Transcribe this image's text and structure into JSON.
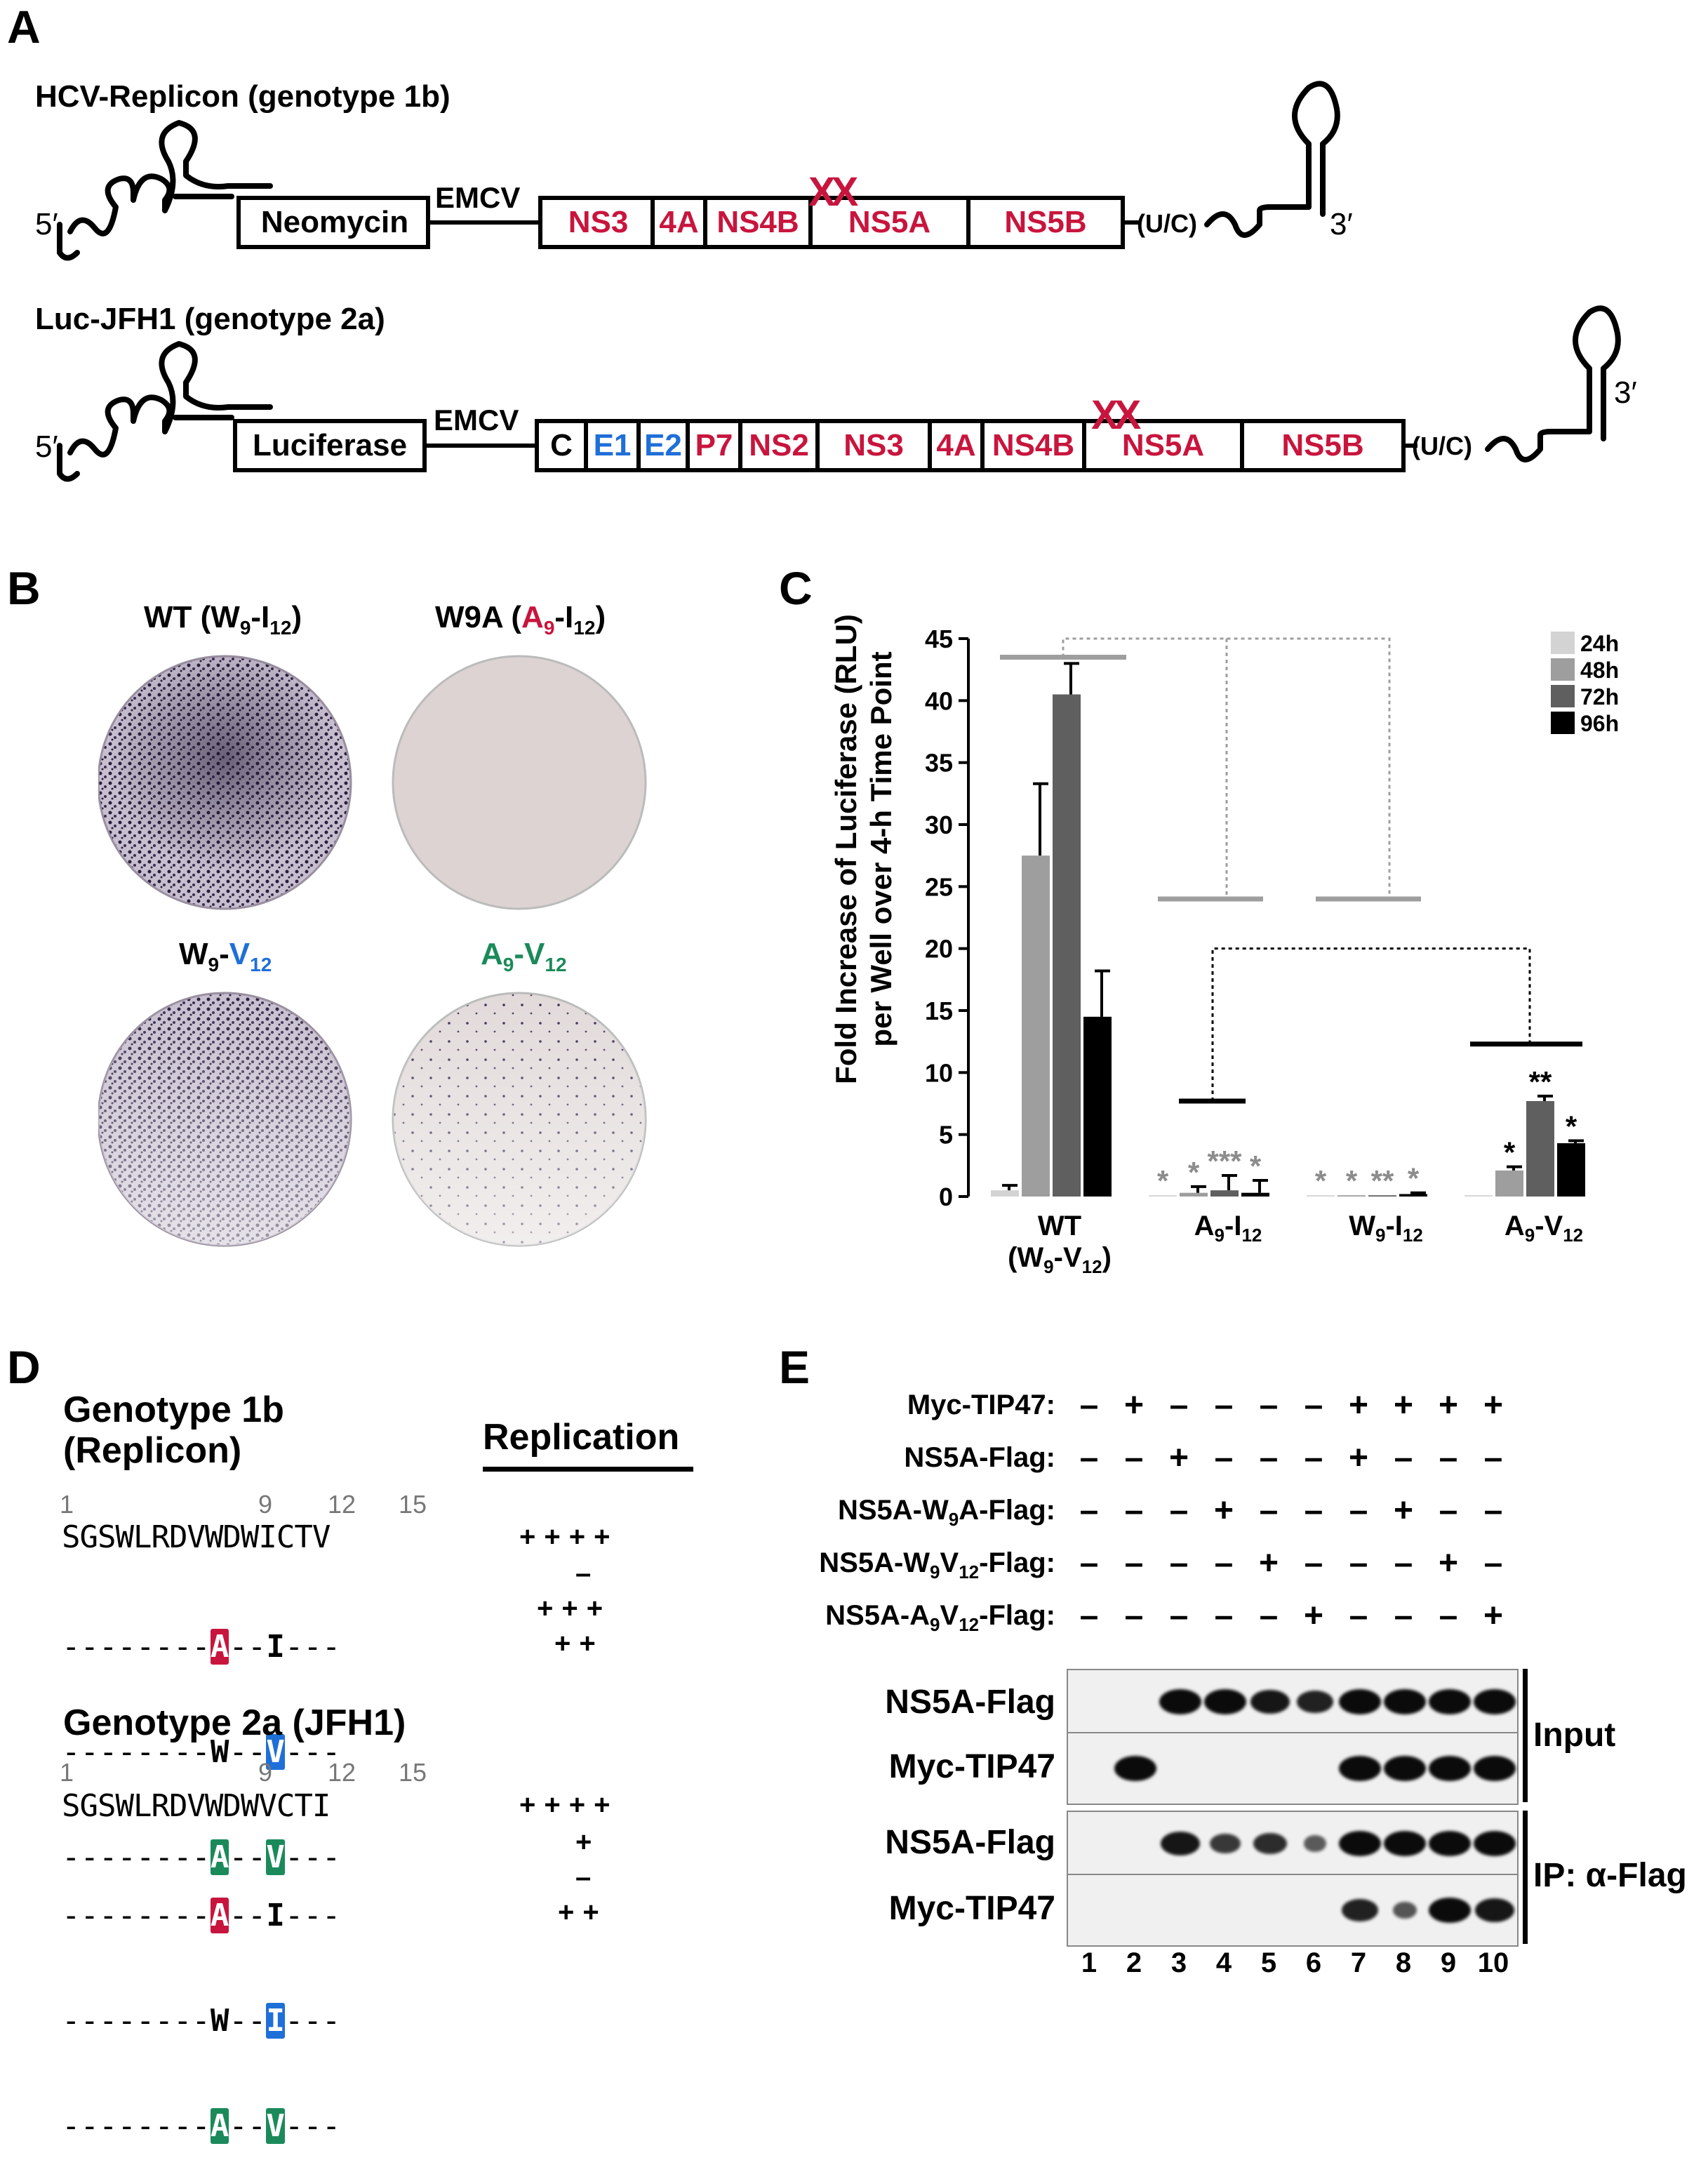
{
  "panels": {
    "a": "A",
    "b": "B",
    "c": "C",
    "d": "D",
    "e": "E"
  },
  "panel_a": {
    "replicon_title": "HCV-Replicon (genotype 1b)",
    "replicon_boxes": [
      "Neomycin",
      "NS3",
      "4A",
      "NS4B",
      "NS5A",
      "NS5B"
    ],
    "jfh1_title": "Luc-JFH1 (genotype 2a)",
    "jfh1_boxes": [
      "Luciferase",
      "C",
      "E1",
      "E2",
      "P7",
      "NS2",
      "NS3",
      "4A",
      "NS4B",
      "NS5A",
      "NS5B"
    ],
    "emcv": "EMCV",
    "five_prime": "5′",
    "three_prime": "3′",
    "uc": "(U/C)",
    "mutation_mark": "XX",
    "colors": {
      "red": "#c8153d",
      "blue": "#1f6fd8"
    }
  },
  "panel_b": {
    "labels": [
      {
        "pre": "WT (W",
        "s1": "9",
        "mid": "-I",
        "s2": "12",
        "post": ")"
      },
      {
        "pre": "W9A (",
        "a": "A",
        "s1": "9",
        "mid": "-I",
        "s2": "12",
        "post": ")"
      },
      {
        "w": "W",
        "s1": "9",
        "dash": "-",
        "v": "V",
        "s2": "12"
      },
      {
        "a": "A",
        "s1": "9",
        "dash": "-",
        "v": "V",
        "s2": "12"
      }
    ]
  },
  "chart_data": {
    "type": "bar",
    "ylabel_line1": "Fold Increase of Luciferase (RLU)",
    "ylabel_line2": "per Well over 4-h Time Point",
    "ylim": [
      0,
      45
    ],
    "yticks": [
      0,
      5,
      10,
      15,
      20,
      25,
      30,
      35,
      40,
      45
    ],
    "categories": [
      "WT (W9-V12)",
      "A9-I12",
      "W9-I12",
      "A9-V12"
    ],
    "category_labels": [
      {
        "l1": "WT",
        "l2": "(W9-V12)"
      },
      {
        "l1": "A9-I12"
      },
      {
        "l1": "W9-I12"
      },
      {
        "l1": "A9-V12"
      }
    ],
    "series": [
      {
        "name": "24h",
        "color": "#d3d3d3",
        "values": [
          0.5,
          0.1,
          0.1,
          0.1
        ],
        "errors": [
          0.4,
          0,
          0,
          0
        ]
      },
      {
        "name": "48h",
        "color": "#9e9e9e",
        "values": [
          27.5,
          0.3,
          0.1,
          2.1
        ],
        "errors": [
          5.8,
          0.5,
          0,
          0.3
        ]
      },
      {
        "name": "72h",
        "color": "#5f5f5f",
        "values": [
          40.5,
          0.5,
          0.1,
          7.7
        ],
        "errors": [
          2.5,
          1.2,
          0,
          0.4
        ]
      },
      {
        "name": "96h",
        "color": "#000000",
        "values": [
          14.5,
          0.3,
          0.2,
          4.3
        ],
        "errors": [
          3.7,
          1.0,
          0.1,
          0.2
        ]
      }
    ],
    "significance": [
      {
        "category": 1,
        "marks": [
          "*",
          "*",
          "***",
          "*"
        ],
        "color": "#8c8c8c"
      },
      {
        "category": 2,
        "marks": [
          "*",
          "*",
          "**",
          "*"
        ],
        "color": "#8c8c8c"
      },
      {
        "category": 3,
        "marks": [
          "",
          "*",
          "**",
          "*"
        ],
        "color": "#000000"
      }
    ],
    "legend_position": "top-right",
    "grid": false
  },
  "panel_d": {
    "gt1b_title_1": "Genotype 1b",
    "gt1b_title_2": "(Replicon)",
    "replication_header": "Replication",
    "positions": [
      "1",
      "9",
      "12",
      "15"
    ],
    "gt1b_seq": "SGSWLRDVWDWICTV",
    "gt1b_rows": [
      {
        "pre": "--------",
        "r9": "A",
        "mid": "--",
        "r12": "I",
        "post": "---",
        "pm": "–"
      },
      {
        "pre": "--------",
        "r9": "W",
        "mid": "--",
        "r12": "V",
        "post": "---",
        "pm": "+++"
      },
      {
        "pre": "--------",
        "r9": "A",
        "mid": "--",
        "r12": "V",
        "post": "---",
        "pm": "++"
      }
    ],
    "gt1b_wt_pm": "++++",
    "gt2a_title": "Genotype 2a (JFH1)",
    "gt2a_seq": "SGSWLRDVWDWVCTI",
    "gt2a_rows": [
      {
        "pre": "--------",
        "r9": "A",
        "mid": "--",
        "r12": "I",
        "post": "---",
        "pm": "+"
      },
      {
        "pre": "--------",
        "r9": "W",
        "mid": "--",
        "r12": "I",
        "post": "---",
        "pm": "–"
      },
      {
        "pre": "--------",
        "r9": "A",
        "mid": "--",
        "r12": "V",
        "post": "---",
        "pm": "++"
      }
    ],
    "gt2a_wt_pm": "++++"
  },
  "panel_e": {
    "row_labels": [
      {
        "text": "Myc-TIP47:"
      },
      {
        "text": "NS5A-Flag:"
      },
      {
        "pre": "NS5A-W",
        "s1": "9",
        "post": "A-Flag:"
      },
      {
        "pre": "NS5A-W",
        "s1": "9",
        "mid": "V",
        "s2": "12",
        "post": "-Flag:"
      },
      {
        "pre": "NS5A-A",
        "s1": "9",
        "mid": "V",
        "s2": "12",
        "post": "-Flag:"
      }
    ],
    "row_marks": [
      [
        "–",
        "+",
        "–",
        "–",
        "–",
        "–",
        "+",
        "+",
        "+",
        "+"
      ],
      [
        "–",
        "–",
        "+",
        "–",
        "–",
        "–",
        "+",
        "–",
        "–",
        "–"
      ],
      [
        "–",
        "–",
        "–",
        "+",
        "–",
        "–",
        "–",
        "+",
        "–",
        "–"
      ],
      [
        "–",
        "–",
        "–",
        "–",
        "+",
        "–",
        "–",
        "–",
        "+",
        "–"
      ],
      [
        "–",
        "–",
        "–",
        "–",
        "–",
        "+",
        "–",
        "–",
        "–",
        "+"
      ]
    ],
    "blot_labels": [
      "NS5A-Flag",
      "Myc-TIP47",
      "NS5A-Flag",
      "Myc-TIP47"
    ],
    "input_label": "Input",
    "ip_label": "IP: α-Flag",
    "lanes": [
      "1",
      "2",
      "3",
      "4",
      "5",
      "6",
      "7",
      "8",
      "9",
      "10"
    ],
    "blot_intensity": [
      [
        0,
        0,
        1,
        1,
        0.9,
        0.8,
        1,
        1,
        1,
        1
      ],
      [
        0,
        1,
        0,
        0,
        0,
        0,
        1,
        1,
        1,
        1
      ],
      [
        0,
        0,
        0.9,
        0.6,
        0.7,
        0.3,
        1,
        1,
        1,
        1
      ],
      [
        0,
        0,
        0,
        0,
        0,
        0,
        0.8,
        0.35,
        1,
        0.9
      ]
    ]
  }
}
